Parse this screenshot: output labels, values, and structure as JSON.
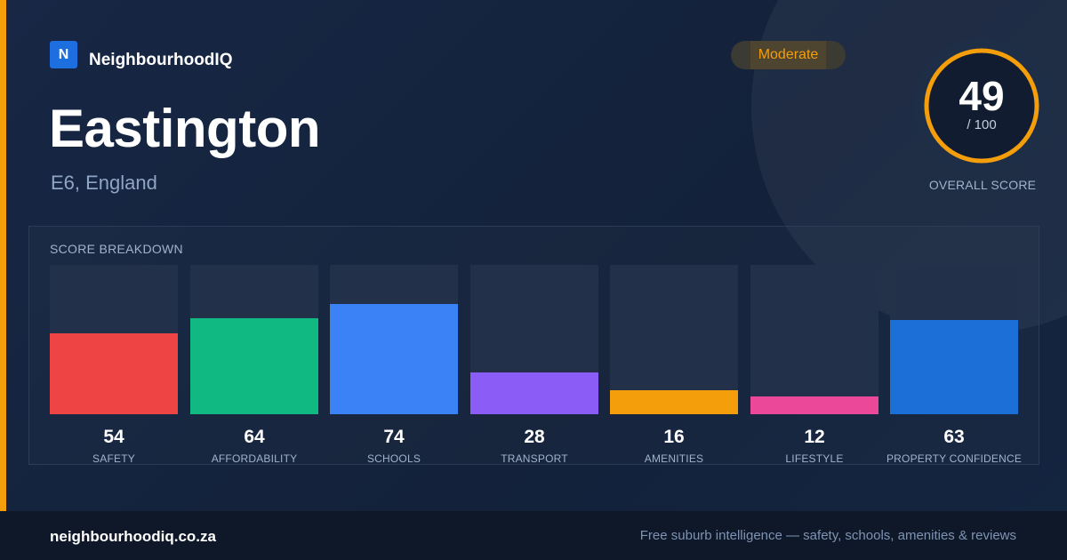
{
  "brand": {
    "logo_letter": "N",
    "name": "NeighbourhoodIQ",
    "logo_color": "#1d6fe0"
  },
  "suburb": {
    "name": "Eastington",
    "location": "E6, England"
  },
  "score": {
    "value": "49",
    "max_label": "/ 100",
    "fraction": 0.49,
    "caption": "OVERALL SCORE",
    "band": "Moderate",
    "band_color": "#f59e0b"
  },
  "breakdown": {
    "title": "SCORE BREAKDOWN",
    "metrics": [
      {
        "label": "SAFETY",
        "value": "54",
        "color": "#ef4444"
      },
      {
        "label": "AFFORDABILITY",
        "value": "64",
        "color": "#10b981"
      },
      {
        "label": "SCHOOLS",
        "value": "74",
        "color": "#3b82f6"
      },
      {
        "label": "TRANSPORT",
        "value": "28",
        "color": "#8b5cf6"
      },
      {
        "label": "AMENITIES",
        "value": "16",
        "color": "#f59e0b"
      },
      {
        "label": "LIFESTYLE",
        "value": "12",
        "color": "#ec4899"
      },
      {
        "label": "PROPERTY CONFIDENCE",
        "value": "63",
        "color": "#1d6fd8"
      }
    ]
  },
  "footer": {
    "site": "neighbourhoodiq.co.za",
    "tagline": "Free suburb intelligence — safety, schools, amenities & reviews"
  }
}
